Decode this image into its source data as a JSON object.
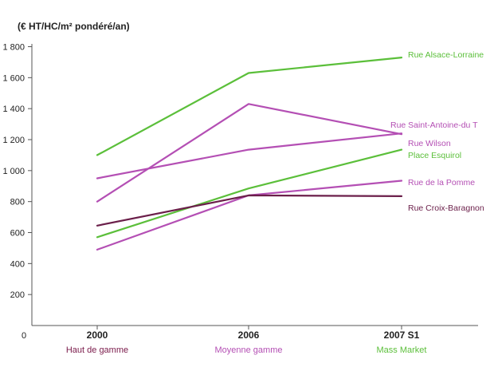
{
  "chart_data": {
    "type": "line",
    "ylabel": "(€ HT/HC/m² pondéré/an)",
    "categories": [
      "2000",
      "2006",
      "2007 S1"
    ],
    "category_sublabels": [
      "Haut de gamme",
      "Moyenne gamme",
      "Mass Market"
    ],
    "category_sublabel_colors": [
      "#7a1a4a",
      "#b44fb4",
      "#5bbf3a"
    ],
    "ylim": [
      0,
      1800
    ],
    "yticks": [
      "1 800",
      "1 600",
      "1 400",
      "1 200",
      "1 000",
      "800",
      "600",
      "400",
      "200"
    ],
    "ytick_values": [
      1800,
      1600,
      1400,
      1200,
      1000,
      800,
      600,
      400,
      200
    ],
    "origin_label": "0",
    "grid": false,
    "series": [
      {
        "name": "Rue Alsace-Lorraine",
        "values": [
          1100,
          1630,
          1730
        ],
        "color": "#5bbf3a"
      },
      {
        "name": "Rue Saint-Antoine-du T",
        "values": [
          800,
          1430,
          1235
        ],
        "color": "#b44fb4"
      },
      {
        "name": "Rue Wilson",
        "values": [
          950,
          1135,
          1240
        ],
        "color": "#b44fb4"
      },
      {
        "name": "Place Esquirol",
        "values": [
          570,
          885,
          1135
        ],
        "color": "#5bbf3a"
      },
      {
        "name": "Rue de la Pomme",
        "values": [
          490,
          840,
          935
        ],
        "color": "#b44fb4"
      },
      {
        "name": "Rue Croix-Baragnon",
        "values": [
          645,
          840,
          835
        ],
        "color": "#6b1f4a"
      }
    ]
  }
}
